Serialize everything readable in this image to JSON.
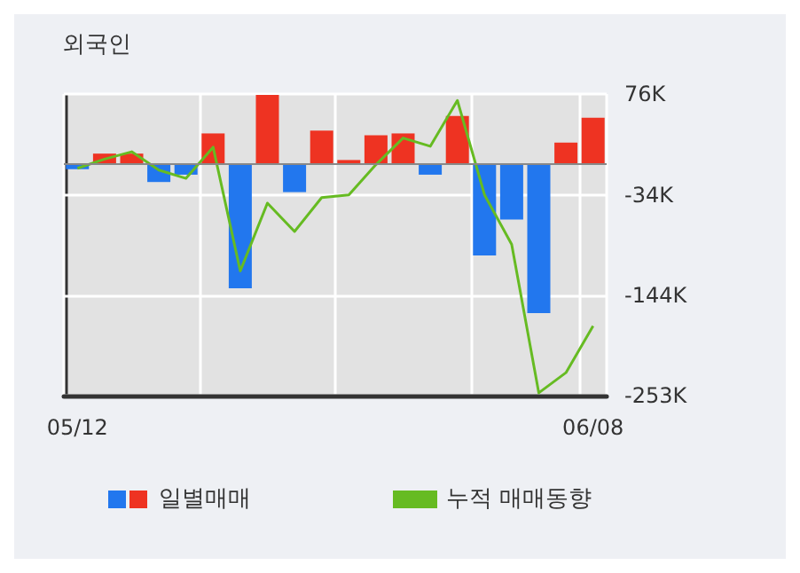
{
  "chart_data": {
    "type": "bar",
    "title": "외국인",
    "categories": [
      "05/12",
      null,
      null,
      null,
      null,
      null,
      null,
      null,
      null,
      null,
      null,
      null,
      null,
      null,
      null,
      null,
      null,
      null,
      null,
      "06/08"
    ],
    "series": [
      {
        "name": "일별매매",
        "colors": [
          "#2277ee",
          "#ee3322",
          "#ee3322",
          "#2277ee",
          "#2277ee",
          "#ee3322",
          "#2277ee",
          "#ee3322",
          "#2277ee",
          "#ee3322",
          "#ee3322",
          "#ee3322",
          "#ee3322",
          "#2277ee",
          "#ee3322",
          "#2277ee",
          "#2277ee",
          "#2277ee",
          "#ee3322",
          "#ee3322"
        ],
        "values": [
          -6,
          11,
          11,
          -20,
          -12,
          33,
          -136,
          75,
          -31,
          36,
          4,
          31,
          33,
          -12,
          52,
          -100,
          -61,
          -163,
          23,
          50
        ]
      },
      {
        "name": "누적 매매동향",
        "type": "line",
        "color": "#66bb22",
        "values": [
          -5,
          5,
          13,
          -7,
          -16,
          18,
          -117,
          -43,
          -74,
          -37,
          -34,
          -1,
          28,
          19,
          69,
          -34,
          -88,
          -250,
          -228,
          -177
        ]
      }
    ],
    "ylim": [
      -253,
      76
    ],
    "yticks": [
      {
        "value": 76,
        "label": "76K"
      },
      {
        "value": -34,
        "label": "-34K"
      },
      {
        "value": -144,
        "label": "-144K"
      },
      {
        "value": -253,
        "label": "-253K"
      }
    ],
    "ref_lines": [
      {
        "axis": "y",
        "value": 0,
        "color": "#888888"
      }
    ],
    "grid": true,
    "legend": "bottom",
    "marker": "none"
  }
}
